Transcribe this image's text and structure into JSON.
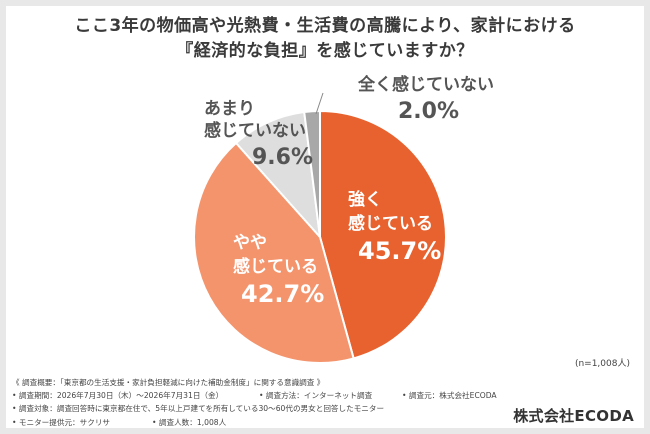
{
  "title_lines": [
    "ここ3年の物価高や光熱費・生活費の高騰により、家計における",
    "『経済的な負担』を感じていますか？"
  ],
  "chart_data": {
    "type": "pie",
    "title": "ここ3年の物価高や光熱費・生活費の高騰により、家計における『経済的な負担』を感じていますか？",
    "unit": "%",
    "slices": [
      {
        "label_lines": [
          "強く",
          "感じている"
        ],
        "value": 45.7,
        "value_label": "45.7%",
        "color": "#e8622f"
      },
      {
        "label_lines": [
          "やや",
          "感じている"
        ],
        "value": 42.7,
        "value_label": "42.7%",
        "color": "#f4946d"
      },
      {
        "label_lines": [
          "あまり",
          "感じていない"
        ],
        "value": 9.6,
        "value_label": "9.6%",
        "color": "#dedede"
      },
      {
        "label_lines": [
          "全く感じていない"
        ],
        "value": 2.0,
        "value_label": "2.0%",
        "color": "#a8a8a8"
      }
    ],
    "sample_note": "(n=1,008人)"
  },
  "notes": [
    [
      "《 調査概要：「東京都の生活支援・家計負担軽減に向けた補助金制度」に関する意識調査 》"
    ],
    [
      "• 調査期間：2026年7月30日（木）〜2026年7月31日（金）",
      "• 調査方法：インターネット調査",
      "• 調査元：株式会社ECODA"
    ],
    [
      "• 調査対象：調査回答時に東京都在住で、5年以上戸建てを所有している30〜60代の男女と回答したモニター"
    ],
    [
      "• モニター提供元：サクリサ",
      "• 調査人数：1,008人"
    ]
  ],
  "brand": "株式会社ECODA"
}
